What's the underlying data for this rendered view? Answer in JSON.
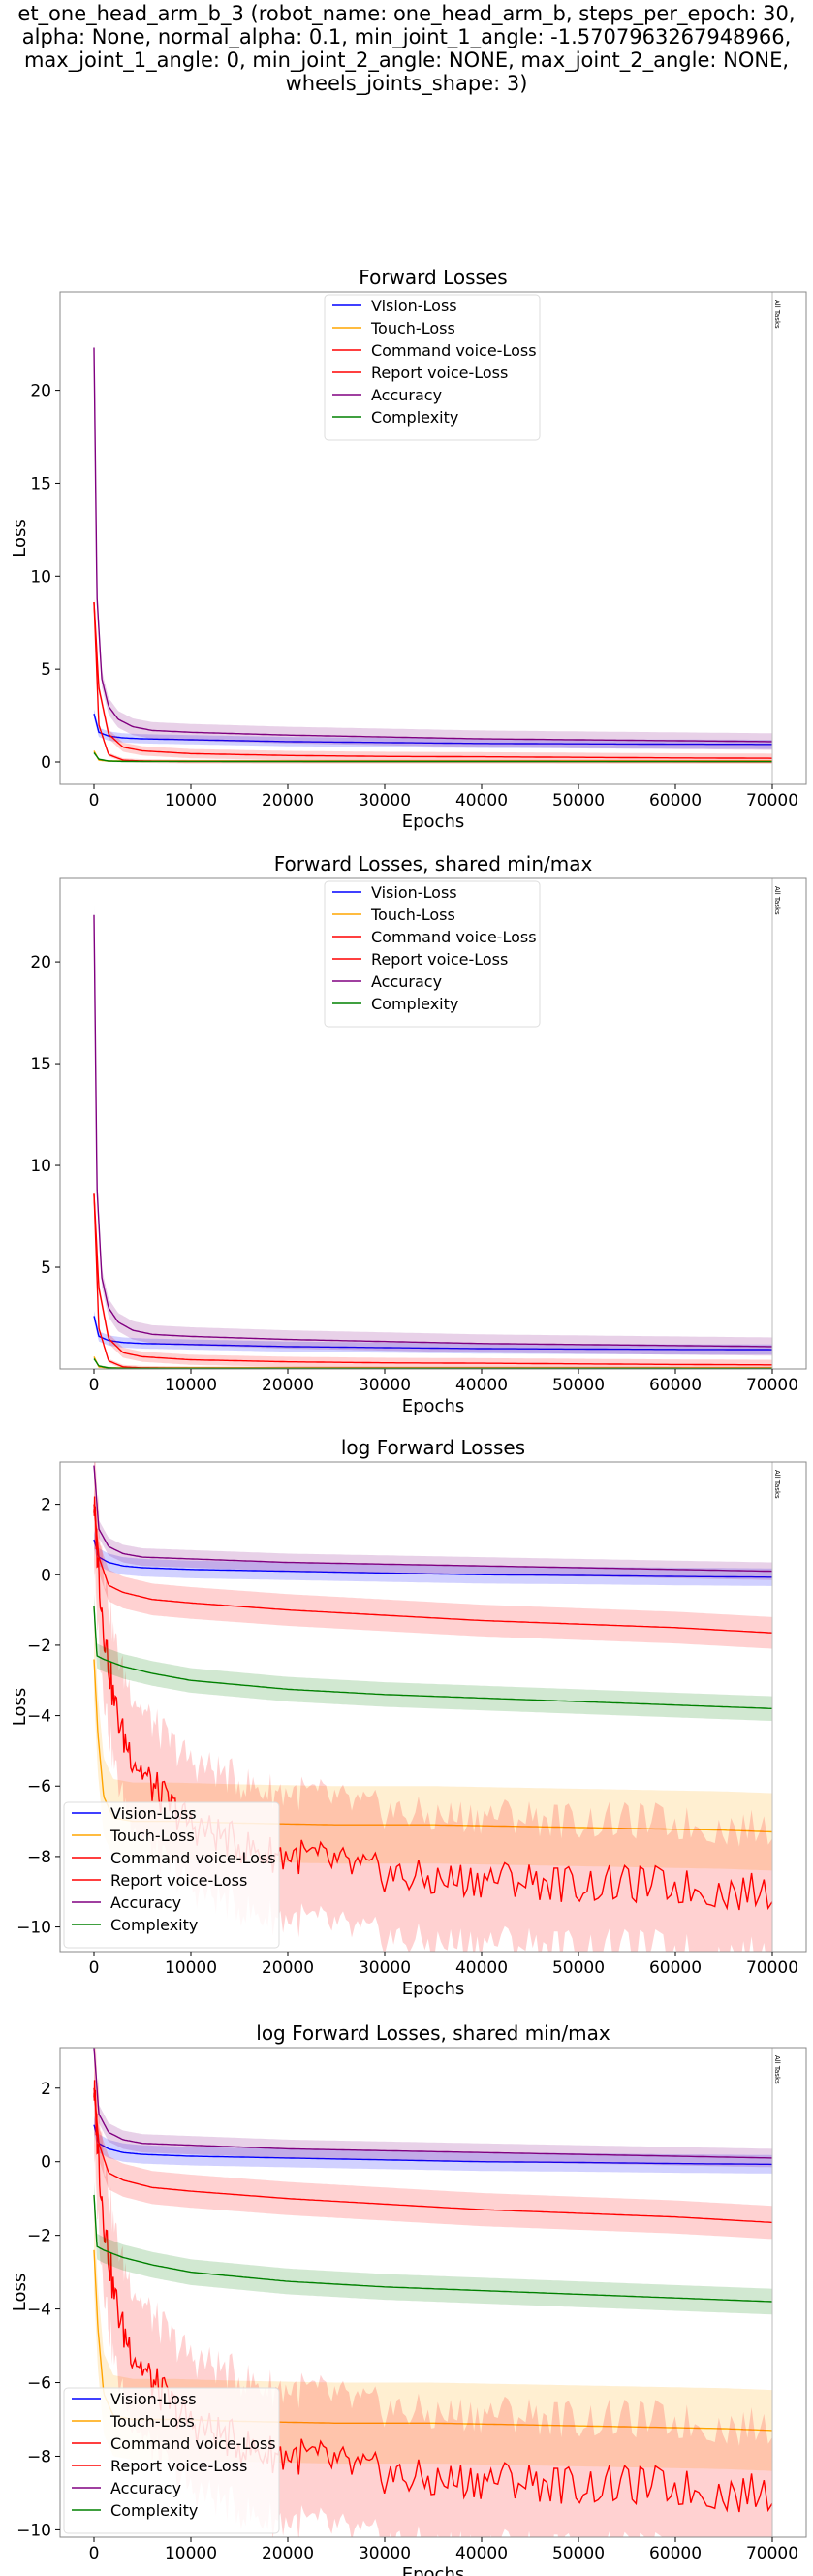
{
  "suptitle": "et_one_head_arm_b_3 (robot_name: one_head_arm_b, steps_per_epoch: 30,\nalpha: None, normal_alpha: 0.1, min_joint_1_angle: -1.5707963267948966,\nmax_joint_1_angle: 0, min_joint_2_angle: NONE, max_joint_2_angle: NONE,\nwheels_joints_shape: 3)",
  "colors": {
    "vision": "#0000ff",
    "touch": "#ffa500",
    "command": "#ff0000",
    "report": "#ff0000",
    "accuracy": "#800080",
    "complexity": "#008000"
  },
  "chart_data": [
    {
      "type": "line",
      "title": "Forward Losses",
      "xlabel": "Epochs",
      "ylabel": "Loss",
      "xlim": [
        -3500,
        73500
      ],
      "ylim": [
        -1.2,
        25.3
      ],
      "xticks": [
        0,
        10000,
        20000,
        30000,
        40000,
        50000,
        60000,
        70000
      ],
      "yticks": [
        0,
        5,
        10,
        15,
        20
      ],
      "vline_x": 70000,
      "vline_label": "All Tasks",
      "legend_position": "top-center",
      "grid": false,
      "series": [
        {
          "name": "Vision-Loss",
          "key": "vision",
          "x": [
            0,
            500,
            1500,
            3000,
            5000,
            10000,
            20000,
            30000,
            40000,
            50000,
            60000,
            70000
          ],
          "y": [
            2.6,
            1.6,
            1.4,
            1.3,
            1.25,
            1.2,
            1.1,
            1.05,
            1.0,
            0.98,
            0.96,
            0.95
          ],
          "band": 0.25
        },
        {
          "name": "Touch-Loss",
          "key": "touch",
          "x": [
            0,
            500,
            1500,
            3000,
            10000,
            70000
          ],
          "y": [
            0.6,
            0.1,
            0.05,
            0.05,
            0.05,
            0.05
          ],
          "band": 0.05
        },
        {
          "name": "Command voice-Loss",
          "key": "command",
          "x": [
            0,
            500,
            1500,
            3000,
            5000,
            10000,
            20000,
            30000,
            40000,
            50000,
            60000,
            70000
          ],
          "y": [
            8.6,
            4.0,
            1.5,
            0.8,
            0.6,
            0.45,
            0.35,
            0.3,
            0.28,
            0.25,
            0.22,
            0.2
          ],
          "band": 0.25
        },
        {
          "name": "Report voice-Loss",
          "key": "report",
          "x": [
            0,
            500,
            1500,
            3000,
            5000,
            10000,
            70000
          ],
          "y": [
            8.6,
            2.0,
            0.4,
            0.1,
            0.05,
            0.02,
            0.01
          ],
          "band": 0.1
        },
        {
          "name": "Accuracy",
          "key": "accuracy",
          "x": [
            0,
            300,
            800,
            1500,
            2500,
            4000,
            6000,
            10000,
            20000,
            30000,
            40000,
            50000,
            60000,
            70000
          ],
          "y": [
            22.3,
            9.0,
            4.5,
            3.0,
            2.3,
            1.9,
            1.7,
            1.6,
            1.45,
            1.35,
            1.25,
            1.2,
            1.15,
            1.1
          ],
          "band": 0.45
        },
        {
          "name": "Complexity",
          "key": "complexity",
          "x": [
            0,
            500,
            1500,
            3000,
            70000
          ],
          "y": [
            0.5,
            0.15,
            0.05,
            0.03,
            0.02
          ],
          "band": 0.05
        }
      ]
    },
    {
      "type": "line",
      "title": "Forward Losses, shared min/max",
      "xlabel": "Epochs",
      "ylabel": "",
      "xlim": [
        -3500,
        73500
      ],
      "ylim": [
        0.0,
        24.1
      ],
      "xticks": [
        0,
        10000,
        20000,
        30000,
        40000,
        50000,
        60000,
        70000
      ],
      "yticks": [
        5,
        10,
        15,
        20
      ],
      "vline_x": 70000,
      "vline_label": "All Tasks",
      "legend_position": "top-center",
      "grid": false,
      "series": [
        {
          "name": "Vision-Loss",
          "key": "vision",
          "x": [
            0,
            500,
            1500,
            3000,
            5000,
            10000,
            20000,
            30000,
            40000,
            50000,
            60000,
            70000
          ],
          "y": [
            2.6,
            1.6,
            1.4,
            1.3,
            1.25,
            1.2,
            1.1,
            1.05,
            1.0,
            0.98,
            0.96,
            0.95
          ],
          "band": 0.25
        },
        {
          "name": "Touch-Loss",
          "key": "touch",
          "x": [
            0,
            500,
            1500,
            3000,
            10000,
            70000
          ],
          "y": [
            0.6,
            0.1,
            0.05,
            0.05,
            0.05,
            0.05
          ],
          "band": 0.05
        },
        {
          "name": "Command voice-Loss",
          "key": "command",
          "x": [
            0,
            500,
            1500,
            3000,
            5000,
            10000,
            20000,
            30000,
            40000,
            50000,
            60000,
            70000
          ],
          "y": [
            8.6,
            4.0,
            1.5,
            0.8,
            0.6,
            0.45,
            0.35,
            0.3,
            0.28,
            0.25,
            0.22,
            0.2
          ],
          "band": 0.25
        },
        {
          "name": "Report voice-Loss",
          "key": "report",
          "x": [
            0,
            500,
            1500,
            3000,
            5000,
            10000,
            70000
          ],
          "y": [
            8.6,
            2.0,
            0.4,
            0.1,
            0.05,
            0.02,
            0.01
          ],
          "band": 0.1
        },
        {
          "name": "Accuracy",
          "key": "accuracy",
          "x": [
            0,
            300,
            800,
            1500,
            2500,
            4000,
            6000,
            10000,
            20000,
            30000,
            40000,
            50000,
            60000,
            70000
          ],
          "y": [
            22.3,
            9.0,
            4.5,
            3.0,
            2.3,
            1.9,
            1.7,
            1.6,
            1.45,
            1.35,
            1.25,
            1.2,
            1.15,
            1.1
          ],
          "band": 0.45
        },
        {
          "name": "Complexity",
          "key": "complexity",
          "x": [
            0,
            500,
            1500,
            3000,
            70000
          ],
          "y": [
            0.5,
            0.15,
            0.05,
            0.03,
            0.02
          ],
          "band": 0.05
        }
      ]
    },
    {
      "type": "line",
      "title": "log Forward Losses",
      "xlabel": "Epochs",
      "ylabel": "Loss",
      "xlim": [
        -3500,
        73500
      ],
      "ylim": [
        -10.7,
        3.2
      ],
      "xticks": [
        0,
        10000,
        20000,
        30000,
        40000,
        50000,
        60000,
        70000
      ],
      "yticks": [
        -10,
        -8,
        -6,
        -4,
        -2,
        0,
        2
      ],
      "vline_x": 70000,
      "vline_label": "All Tasks",
      "legend_position": "lower-left",
      "grid": false,
      "series": [
        {
          "name": "Vision-Loss",
          "key": "vision",
          "x": [
            0,
            500,
            1500,
            3000,
            5000,
            10000,
            20000,
            30000,
            40000,
            50000,
            60000,
            70000
          ],
          "y": [
            1.0,
            0.5,
            0.35,
            0.25,
            0.2,
            0.15,
            0.1,
            0.05,
            0.0,
            -0.02,
            -0.05,
            -0.07
          ],
          "band": 0.25
        },
        {
          "name": "Touch-Loss",
          "key": "touch",
          "x": [
            0,
            400,
            1000,
            2000,
            4000,
            8000,
            15000,
            25000,
            35000,
            45000,
            55000,
            65000,
            70000
          ],
          "y": [
            -2.4,
            -4.5,
            -6.3,
            -6.9,
            -7.0,
            -7.0,
            -7.05,
            -7.1,
            -7.1,
            -7.15,
            -7.2,
            -7.25,
            -7.3
          ],
          "band": 1.1
        },
        {
          "name": "Command voice-Loss",
          "key": "command",
          "x": [
            0,
            500,
            1500,
            3000,
            6000,
            10000,
            20000,
            30000,
            40000,
            50000,
            60000,
            70000
          ],
          "y": [
            2.0,
            0.5,
            -0.3,
            -0.5,
            -0.7,
            -0.8,
            -1.0,
            -1.15,
            -1.3,
            -1.4,
            -1.5,
            -1.65
          ],
          "band": 0.45
        },
        {
          "name": "Report voice-Loss",
          "key": "report",
          "x": [
            0,
            500,
            1000,
            2000,
            3000,
            4500,
            6000,
            8000,
            10000,
            13000,
            17000,
            22000,
            28000,
            35000,
            42000,
            50000,
            58000,
            65000,
            70000
          ],
          "y": [
            2.0,
            0.0,
            -1.5,
            -3.5,
            -4.6,
            -5.4,
            -6.0,
            -6.6,
            -7.1,
            -7.4,
            -7.9,
            -8.0,
            -8.4,
            -8.7,
            -8.6,
            -8.8,
            -8.8,
            -9.0,
            -9.0
          ],
          "band": 1.8,
          "noise": 0.55
        },
        {
          "name": "Accuracy",
          "key": "accuracy",
          "x": [
            0,
            500,
            1500,
            3000,
            5000,
            10000,
            20000,
            30000,
            40000,
            50000,
            60000,
            70000
          ],
          "y": [
            3.1,
            1.3,
            0.8,
            0.6,
            0.5,
            0.45,
            0.35,
            0.3,
            0.25,
            0.2,
            0.15,
            0.1
          ],
          "band": 0.25
        },
        {
          "name": "Complexity",
          "key": "complexity",
          "x": [
            0,
            300,
            1000,
            3000,
            6000,
            10000,
            20000,
            30000,
            40000,
            50000,
            60000,
            70000
          ],
          "y": [
            -0.9,
            -2.3,
            -2.4,
            -2.6,
            -2.8,
            -3.0,
            -3.25,
            -3.4,
            -3.5,
            -3.6,
            -3.7,
            -3.8
          ],
          "band": 0.35
        }
      ]
    },
    {
      "type": "line",
      "title": "log Forward Losses, shared min/max",
      "xlabel": "Epochs",
      "ylabel": "Loss",
      "xlim": [
        -3500,
        73500
      ],
      "ylim": [
        -10.2,
        3.1
      ],
      "xticks": [
        0,
        10000,
        20000,
        30000,
        40000,
        50000,
        60000,
        70000
      ],
      "yticks": [
        -10,
        -8,
        -6,
        -4,
        -2,
        0,
        2
      ],
      "vline_x": 70000,
      "vline_label": "All Tasks",
      "legend_position": "lower-left",
      "grid": false,
      "series": [
        {
          "name": "Vision-Loss",
          "key": "vision",
          "x": [
            0,
            500,
            1500,
            3000,
            5000,
            10000,
            20000,
            30000,
            40000,
            50000,
            60000,
            70000
          ],
          "y": [
            1.0,
            0.5,
            0.35,
            0.25,
            0.2,
            0.15,
            0.1,
            0.05,
            0.0,
            -0.02,
            -0.05,
            -0.07
          ],
          "band": 0.25
        },
        {
          "name": "Touch-Loss",
          "key": "touch",
          "x": [
            0,
            400,
            1000,
            2000,
            4000,
            8000,
            15000,
            25000,
            35000,
            45000,
            55000,
            65000,
            70000
          ],
          "y": [
            -2.4,
            -4.5,
            -6.3,
            -6.9,
            -7.0,
            -7.0,
            -7.05,
            -7.1,
            -7.1,
            -7.15,
            -7.2,
            -7.25,
            -7.3
          ],
          "band": 1.1
        },
        {
          "name": "Command voice-Loss",
          "key": "command",
          "x": [
            0,
            500,
            1500,
            3000,
            6000,
            10000,
            20000,
            30000,
            40000,
            50000,
            60000,
            70000
          ],
          "y": [
            2.0,
            0.5,
            -0.3,
            -0.5,
            -0.7,
            -0.8,
            -1.0,
            -1.15,
            -1.3,
            -1.4,
            -1.5,
            -1.65
          ],
          "band": 0.45
        },
        {
          "name": "Report voice-Loss",
          "key": "report",
          "x": [
            0,
            500,
            1000,
            2000,
            3000,
            4500,
            6000,
            8000,
            10000,
            13000,
            17000,
            22000,
            28000,
            35000,
            42000,
            50000,
            58000,
            65000,
            70000
          ],
          "y": [
            2.0,
            0.0,
            -1.5,
            -3.5,
            -4.6,
            -5.4,
            -6.0,
            -6.6,
            -7.1,
            -7.4,
            -7.9,
            -8.0,
            -8.4,
            -8.7,
            -8.6,
            -8.8,
            -8.8,
            -9.0,
            -9.0
          ],
          "band": 1.8,
          "noise": 0.55
        },
        {
          "name": "Accuracy",
          "key": "accuracy",
          "x": [
            0,
            500,
            1500,
            3000,
            5000,
            10000,
            20000,
            30000,
            40000,
            50000,
            60000,
            70000
          ],
          "y": [
            3.1,
            1.3,
            0.8,
            0.6,
            0.5,
            0.45,
            0.35,
            0.3,
            0.25,
            0.2,
            0.15,
            0.1
          ],
          "band": 0.25
        },
        {
          "name": "Complexity",
          "key": "complexity",
          "x": [
            0,
            300,
            1000,
            3000,
            6000,
            10000,
            20000,
            30000,
            40000,
            50000,
            60000,
            70000
          ],
          "y": [
            -0.9,
            -2.3,
            -2.4,
            -2.6,
            -2.8,
            -3.0,
            -3.25,
            -3.4,
            -3.5,
            -3.6,
            -3.7,
            -3.8
          ],
          "band": 0.35
        }
      ]
    }
  ]
}
